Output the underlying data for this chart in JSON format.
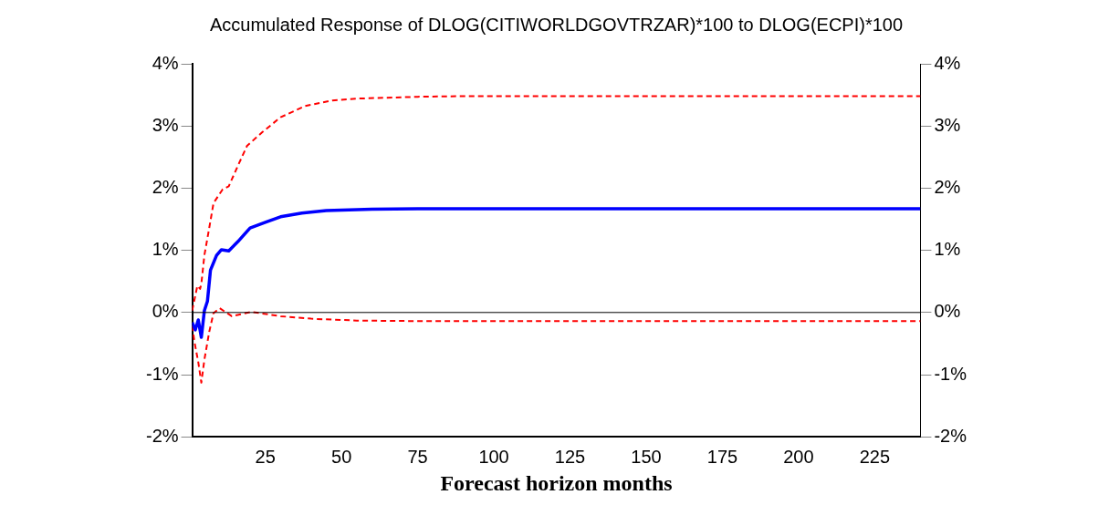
{
  "chart_data": {
    "type": "line",
    "title": "Accumulated Response of DLOG(CITIWORLDGOVTRZAR)*100 to DLOG(ECPI)*100",
    "xlabel": "Forecast horizon months",
    "series": [
      {
        "color": "#0000ff",
        "line_style": "solid",
        "x": [
          1,
          2,
          3,
          4,
          5,
          6,
          7,
          9,
          10.6,
          13,
          16,
          20,
          25,
          30,
          37,
          45,
          60,
          75,
          100,
          150,
          200,
          240
        ],
        "values": [
          -0.16,
          -0.28,
          -0.12,
          -0.4,
          0.03,
          0.18,
          0.68,
          0.92,
          1.01,
          0.99,
          1.14,
          1.36,
          1.45,
          1.54,
          1.6,
          1.64,
          1.66,
          1.67,
          1.67,
          1.67,
          1.67,
          1.67
        ]
      },
      {
        "color": "#ff0000",
        "line_style": "dashed",
        "x": [
          1,
          2.7,
          3.6,
          4,
          5,
          6.6,
          8,
          11,
          13,
          16,
          19,
          24,
          30,
          38,
          47,
          55,
          75,
          90,
          150,
          200,
          240
        ],
        "values": [
          0.03,
          0.43,
          0.38,
          0.46,
          0.92,
          1.36,
          1.76,
          1.98,
          2.03,
          2.36,
          2.68,
          2.9,
          3.14,
          3.32,
          3.41,
          3.44,
          3.47,
          3.48,
          3.48,
          3.48,
          3.48
        ]
      },
      {
        "color": "#ff0000",
        "line_style": "dashed",
        "x": [
          1,
          1.7,
          3,
          4,
          5,
          6.6,
          8,
          10,
          14,
          20.5,
          30,
          40,
          55,
          80,
          150,
          240
        ],
        "values": [
          -0.21,
          -0.46,
          -0.8,
          -1.13,
          -0.76,
          -0.31,
          -0.01,
          0.07,
          -0.06,
          0.01,
          -0.06,
          -0.1,
          -0.13,
          -0.14,
          -0.14,
          -0.14
        ]
      }
    ],
    "xlim": [
      1,
      240
    ],
    "xticks": [
      25,
      50,
      75,
      100,
      125,
      150,
      175,
      200,
      225
    ],
    "ylim": [
      -2,
      4
    ],
    "yticks": [
      {
        "value": -2,
        "label": "-2%"
      },
      {
        "value": -1,
        "label": "-1%"
      },
      {
        "value": 0,
        "label": "0%"
      },
      {
        "value": 1,
        "label": "1%"
      },
      {
        "value": 2,
        "label": "2%"
      },
      {
        "value": 3,
        "label": "3%"
      },
      {
        "value": 4,
        "label": "4%"
      }
    ],
    "y2lim": [
      -2,
      4
    ],
    "y2ticks": [
      {
        "value": -2,
        "label": "-2%"
      },
      {
        "value": -1,
        "label": "-1%"
      },
      {
        "value": 0,
        "label": "0%"
      },
      {
        "value": 1,
        "label": "1%"
      },
      {
        "value": 2,
        "label": "2%"
      },
      {
        "value": 3,
        "label": "3%"
      },
      {
        "value": 4,
        "label": "4%"
      }
    ],
    "ref_lines": [
      {
        "axis": "y",
        "value": 0,
        "color": "#000000"
      }
    ],
    "grid": false,
    "legend": false,
    "marker": "none"
  }
}
